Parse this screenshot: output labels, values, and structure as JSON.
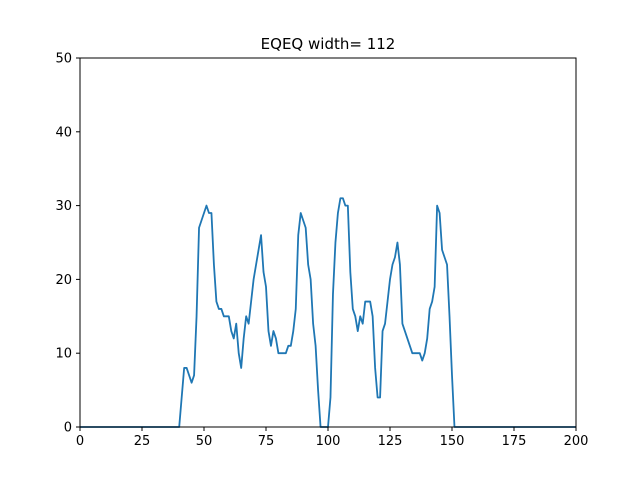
{
  "chart_data": {
    "type": "line",
    "title": "EQEQ width= 112",
    "xlabel": "",
    "ylabel": "",
    "xlim": [
      0,
      200
    ],
    "ylim": [
      0,
      50
    ],
    "xticks": [
      0,
      25,
      50,
      75,
      100,
      125,
      150,
      175,
      200
    ],
    "yticks": [
      0,
      10,
      20,
      30,
      40,
      50
    ],
    "grid": false,
    "legend": "none",
    "series": [
      {
        "color": "#1f77b4",
        "x": [
          0,
          40,
          41,
          42,
          43,
          44,
          45,
          46,
          47,
          48,
          49,
          50,
          51,
          52,
          53,
          54,
          55,
          56,
          57,
          58,
          59,
          60,
          61,
          62,
          63,
          64,
          65,
          66,
          67,
          68,
          69,
          70,
          71,
          72,
          73,
          74,
          75,
          76,
          77,
          78,
          79,
          80,
          81,
          82,
          83,
          84,
          85,
          86,
          87,
          88,
          89,
          90,
          91,
          92,
          93,
          94,
          95,
          96,
          97,
          98,
          99,
          100,
          101,
          102,
          103,
          104,
          105,
          106,
          107,
          108,
          109,
          110,
          111,
          112,
          113,
          114,
          115,
          116,
          117,
          118,
          119,
          120,
          121,
          122,
          123,
          124,
          125,
          126,
          127,
          128,
          129,
          130,
          131,
          132,
          133,
          134,
          135,
          136,
          137,
          138,
          139,
          140,
          141,
          142,
          143,
          144,
          145,
          146,
          147,
          148,
          149,
          150,
          151,
          152,
          153,
          200
        ],
        "y": [
          0,
          0,
          4,
          8,
          8,
          7,
          6,
          7,
          15,
          27,
          28,
          29,
          30,
          29,
          29,
          22,
          17,
          16,
          16,
          15,
          15,
          15,
          13,
          12,
          14,
          10,
          8,
          12,
          15,
          14,
          17,
          20,
          22,
          24,
          26,
          21,
          19,
          13,
          11,
          13,
          12,
          10,
          10,
          10,
          10,
          11,
          11,
          13,
          16,
          26,
          29,
          28,
          27,
          22,
          20,
          14,
          11,
          5,
          0,
          0,
          0,
          0,
          4,
          18,
          25,
          29,
          31,
          31,
          30,
          30,
          21,
          16,
          15,
          13,
          15,
          14,
          17,
          17,
          17,
          15,
          8,
          4,
          4,
          13,
          14,
          17,
          20,
          22,
          23,
          25,
          22,
          14,
          13,
          12,
          11,
          10,
          10,
          10,
          10,
          9,
          10,
          12,
          16,
          17,
          19,
          30,
          29,
          24,
          23,
          22,
          15,
          7,
          0,
          0,
          0,
          0
        ]
      }
    ]
  }
}
